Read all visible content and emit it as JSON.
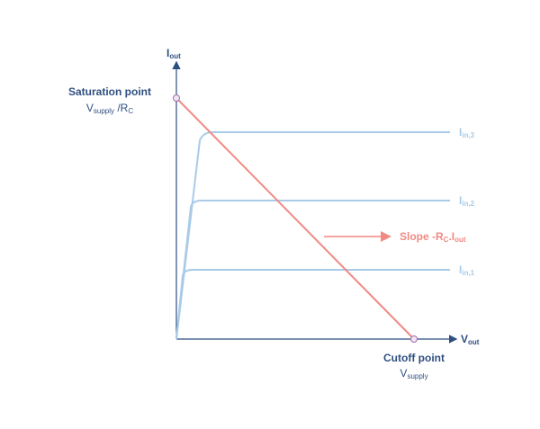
{
  "axes": {
    "y_label": {
      "main": "I",
      "sub": "out"
    },
    "x_label": {
      "main": "V",
      "sub": "out"
    }
  },
  "saturation": {
    "title": "Saturation point",
    "formula": {
      "main": "V",
      "sub": "supply",
      "main2": " /R",
      "sub2": "C"
    }
  },
  "cutoff": {
    "title": "Cutoff point",
    "formula": {
      "main": "V",
      "sub": "supply"
    }
  },
  "curves": [
    {
      "main": "I",
      "sub": "in,3"
    },
    {
      "main": "I",
      "sub": "in,2"
    },
    {
      "main": "I",
      "sub": "in,1"
    }
  ],
  "slope": {
    "main": "Slope -R",
    "sub": "C",
    "main2": ".I",
    "sub2": "out"
  }
}
